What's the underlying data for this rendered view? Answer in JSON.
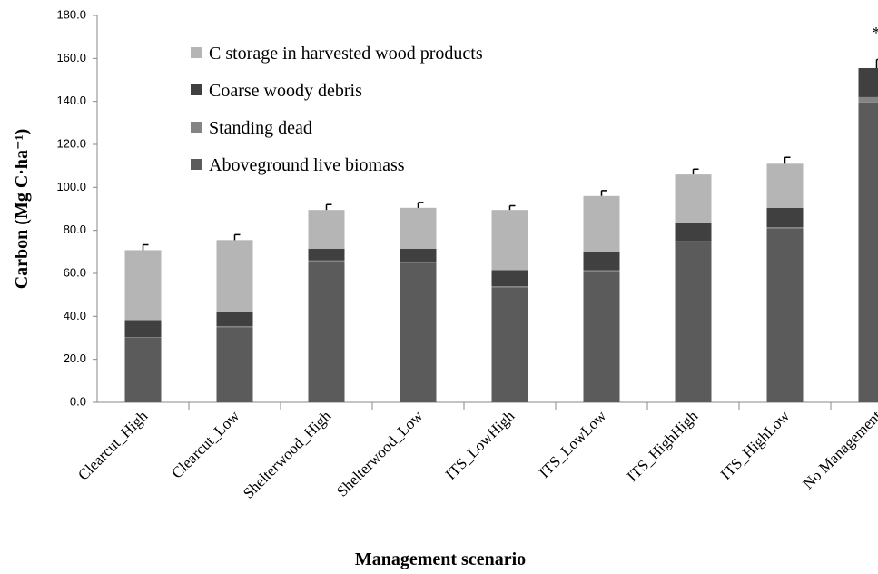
{
  "chart_data": {
    "type": "stacked-bar",
    "y_label": "Carbon (Mg C·ha⁻¹)",
    "x_label": "Management scenario",
    "annotation": "*",
    "categories": [
      "Clearcut_High",
      "Clearcut_Low",
      "Shelterwood_High",
      "Shelterwood_Low",
      "ITS_LowHigh",
      "ITS_LowLow",
      "ITS_HighHigh",
      "ITS_HighLow",
      "No Management"
    ],
    "series": [
      {
        "name": "Aboveground live biomass",
        "color": "#5b5b5b",
        "values": [
          30,
          35,
          65.5,
          65,
          53.5,
          61,
          74.5,
          81,
          139.5
        ]
      },
      {
        "name": "Standing dead",
        "color": "#848484",
        "values": [
          0.3,
          0.5,
          0.5,
          0.5,
          0.5,
          0.5,
          0.5,
          0.5,
          2.5
        ]
      },
      {
        "name": "Coarse woody debris",
        "color": "#404040",
        "values": [
          8,
          6.5,
          5.5,
          6,
          7.5,
          8.5,
          8.5,
          9,
          13.5
        ]
      },
      {
        "name": "C storage in harvested wood products",
        "color": "#b5b5b5",
        "values": [
          32.5,
          33.5,
          18,
          19,
          28,
          26,
          22.5,
          20.5,
          0
        ]
      }
    ],
    "errors": [
      2.5,
      2.5,
      2.5,
      2.5,
      2,
      2.5,
      2.5,
      3,
      4
    ],
    "ylim": [
      0,
      180
    ],
    "yticks": [
      {
        "value": 0,
        "label": "0.0"
      },
      {
        "value": 20,
        "label": "20.0"
      },
      {
        "value": 40,
        "label": "40.0"
      },
      {
        "value": 60,
        "label": "60.0"
      },
      {
        "value": 80,
        "label": "80.0"
      },
      {
        "value": 100,
        "label": "100.0"
      },
      {
        "value": 120,
        "label": "120.0"
      },
      {
        "value": 140,
        "label": "140.0"
      },
      {
        "value": 160,
        "label": "160.0"
      },
      {
        "value": 180,
        "label": "180.0"
      }
    ],
    "legend": "upper-left"
  }
}
